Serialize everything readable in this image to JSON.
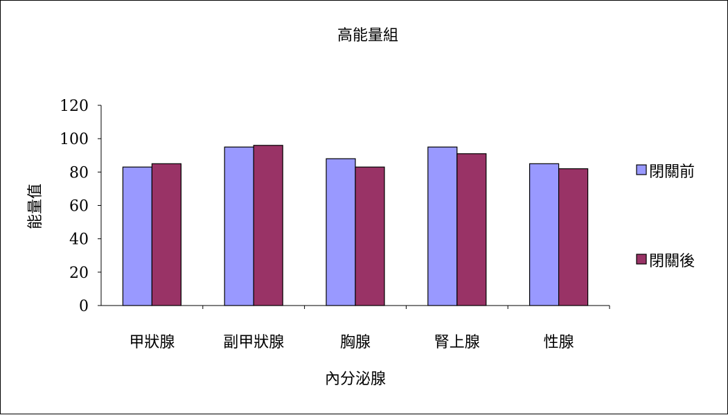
{
  "chart_data": {
    "type": "bar",
    "title": "高能量組",
    "xlabel": "內分泌腺",
    "ylabel": "能量值",
    "ylim": [
      0,
      120
    ],
    "yticks": [
      0,
      20,
      40,
      60,
      80,
      100,
      120
    ],
    "grid": false,
    "legend_position": "right",
    "categories": [
      "甲狀腺",
      "副甲狀腺",
      "胸腺",
      "腎上腺",
      "性腺"
    ],
    "series": [
      {
        "name": "閉關前",
        "color": "#9999ff",
        "values": [
          83,
          95,
          88,
          95,
          85
        ]
      },
      {
        "name": "閉關後",
        "color": "#993366",
        "values": [
          85,
          96,
          83,
          91,
          82
        ]
      }
    ]
  }
}
